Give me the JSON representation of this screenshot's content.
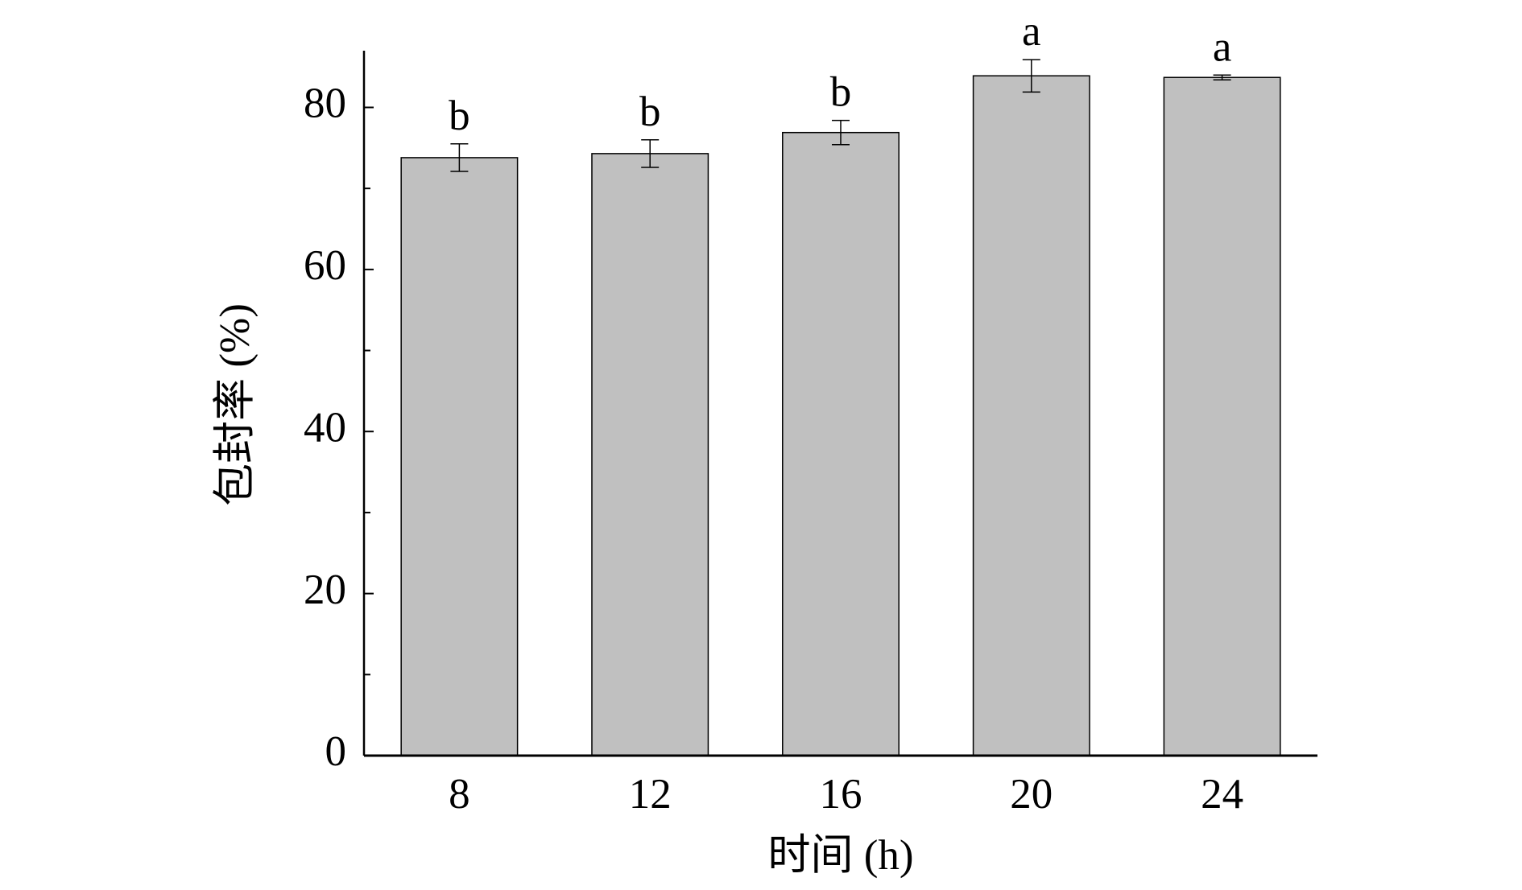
{
  "chart_data": {
    "type": "bar",
    "xlabel": "时间 (h)",
    "ylabel": "包封率 (%)",
    "categories": [
      "8",
      "12",
      "16",
      "20",
      "24"
    ],
    "values": [
      73.8,
      74.3,
      76.9,
      83.9,
      83.7
    ],
    "errors": [
      1.7,
      1.7,
      1.5,
      2.0,
      0.3
    ],
    "annotations": [
      "b",
      "b",
      "b",
      "a",
      "a"
    ],
    "color": "#c0c0c0",
    "ylim": [
      0,
      87
    ],
    "yticks": [
      0,
      20,
      40,
      60,
      80
    ],
    "yminor_ticks": [
      10,
      30,
      50,
      70
    ],
    "grid": false
  }
}
